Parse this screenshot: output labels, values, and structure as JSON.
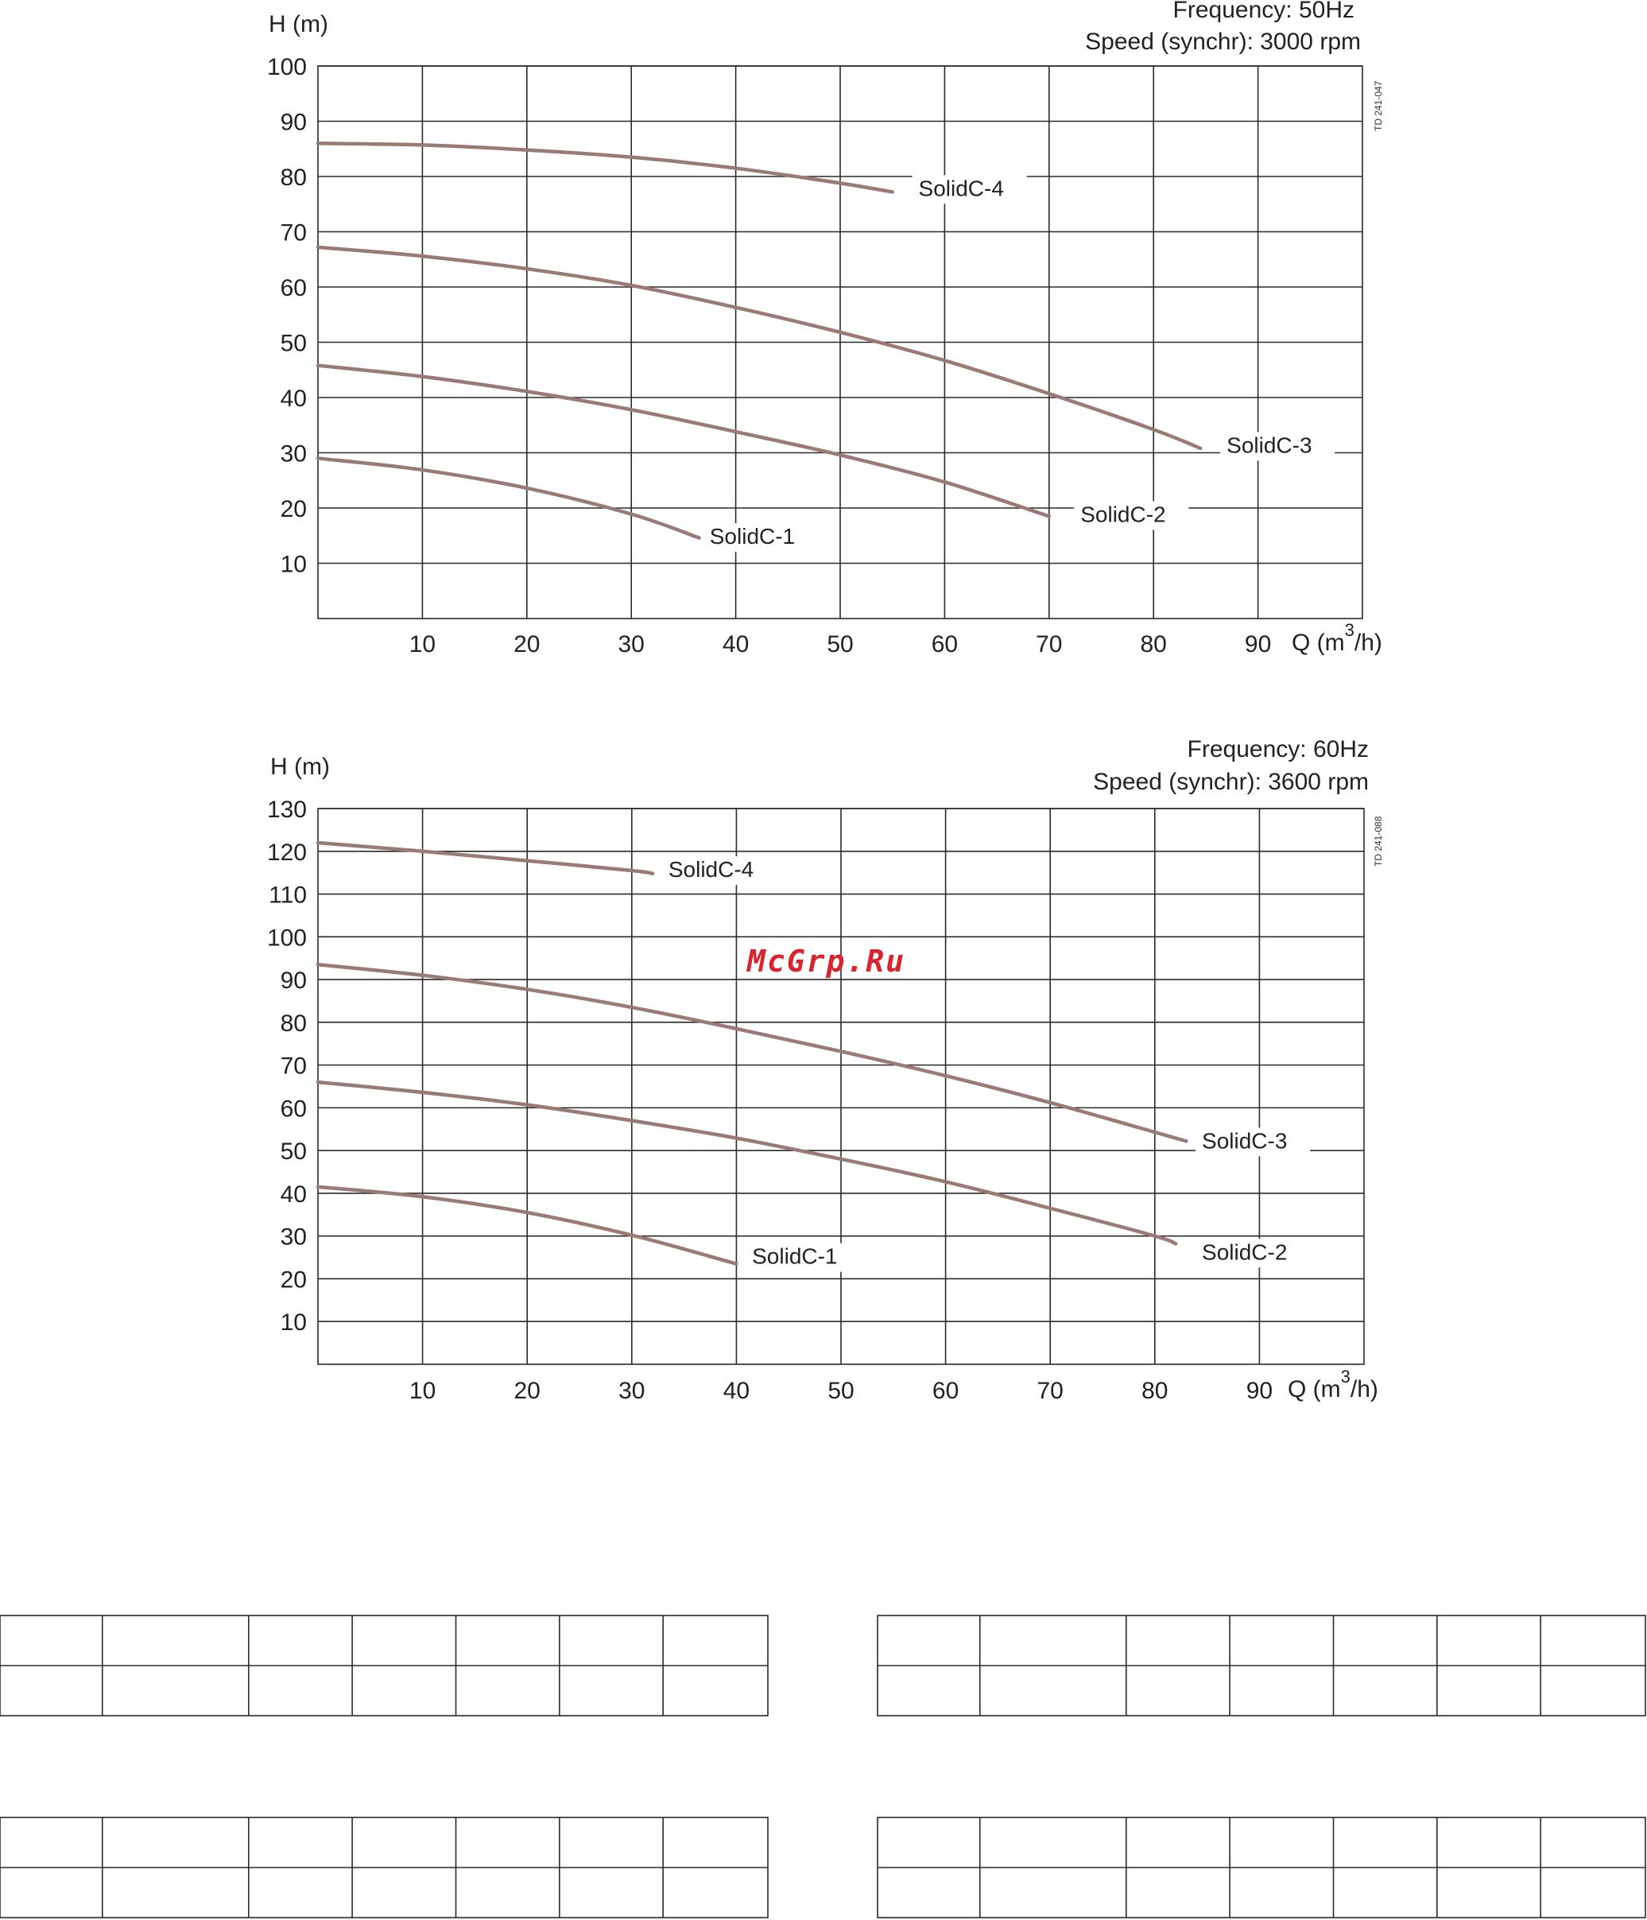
{
  "watermark": "McGrp.Ru",
  "chart_data": [
    {
      "type": "line",
      "frequency_label": "Frequency: 50Hz",
      "speed_label": "Speed (synchr): 3000 rpm",
      "ylabel": "H (m)",
      "xlabel_main": "Q (m",
      "xlabel_sup": "3",
      "xlabel_tail": "/h)",
      "code": "TD 241-047",
      "xlim": [
        0,
        100
      ],
      "ylim": [
        0,
        100
      ],
      "yticks": [
        10,
        20,
        30,
        40,
        50,
        60,
        70,
        80,
        90,
        100
      ],
      "xticks": [
        10,
        20,
        30,
        40,
        50,
        60,
        70,
        80,
        90
      ],
      "grid": true,
      "curve_color": "#9a7a72",
      "series": [
        {
          "name": "SolidC-4",
          "x": [
            0,
            10,
            20,
            30,
            40,
            50,
            55
          ],
          "y": [
            86,
            85.7,
            84.8,
            83.5,
            81.5,
            78.8,
            77.2
          ],
          "label_at": [
            57.5,
            76.5
          ]
        },
        {
          "name": "SolidC-3",
          "x": [
            0,
            10,
            20,
            30,
            40,
            50,
            60,
            70,
            80,
            84.5
          ],
          "y": [
            67.2,
            65.6,
            63.3,
            60.3,
            56.3,
            51.8,
            46.7,
            40.7,
            34.2,
            30.8
          ],
          "label_at": [
            87,
            30
          ]
        },
        {
          "name": "SolidC-2",
          "x": [
            0,
            10,
            20,
            30,
            40,
            50,
            60,
            70
          ],
          "y": [
            45.8,
            43.8,
            41.1,
            37.8,
            33.8,
            29.6,
            24.7,
            18.5
          ],
          "label_at": [
            73,
            17.5
          ]
        },
        {
          "name": "SolidC-1",
          "x": [
            0,
            10,
            20,
            30,
            36.5
          ],
          "y": [
            29,
            26.9,
            23.6,
            18.9,
            14.6
          ],
          "label_at": [
            37.5,
            13.5
          ]
        }
      ]
    },
    {
      "type": "line",
      "frequency_label": "Frequency: 60Hz",
      "speed_label": "Speed (synchr): 3600 rpm",
      "ylabel": "H (m)",
      "xlabel_main": "Q (m",
      "xlabel_sup": "3",
      "xlabel_tail": "/h)",
      "code": "TD 241-088",
      "xlim": [
        0,
        100
      ],
      "ylim": [
        0,
        130
      ],
      "yticks": [
        10,
        20,
        30,
        40,
        50,
        60,
        70,
        80,
        90,
        100,
        110,
        120,
        130
      ],
      "xticks": [
        10,
        20,
        30,
        40,
        50,
        60,
        70,
        80,
        90
      ],
      "grid": true,
      "curve_color": "#9a7a72",
      "series": [
        {
          "name": "SolidC-4",
          "x": [
            0,
            10,
            20,
            30,
            32
          ],
          "y": [
            122,
            120,
            117.8,
            115.5,
            114.8
          ],
          "label_at": [
            33.5,
            114
          ]
        },
        {
          "name": "SolidC-3",
          "x": [
            0,
            10,
            20,
            30,
            40,
            50,
            60,
            70,
            80,
            83
          ],
          "y": [
            93.5,
            91,
            87.7,
            83.5,
            78.5,
            73.2,
            67.5,
            61.2,
            54.3,
            52.2
          ],
          "label_at": [
            84.5,
            50.5
          ]
        },
        {
          "name": "SolidC-2",
          "x": [
            0,
            10,
            20,
            30,
            40,
            50,
            60,
            70,
            80,
            82
          ],
          "y": [
            66,
            63.6,
            60.7,
            57,
            52.9,
            48,
            42.7,
            36.5,
            30,
            28.2
          ],
          "label_at": [
            84.5,
            24.5
          ]
        },
        {
          "name": "SolidC-1",
          "x": [
            0,
            10,
            20,
            30,
            40
          ],
          "y": [
            41.5,
            39.2,
            35.5,
            30.2,
            23.5
          ],
          "label_at": [
            41.5,
            23.5
          ]
        }
      ]
    }
  ]
}
